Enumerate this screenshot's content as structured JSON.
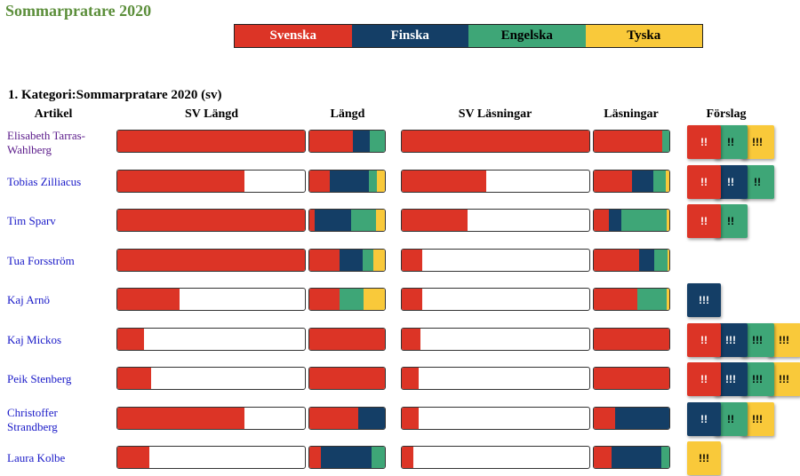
{
  "page": {
    "title": "Sommarpratare 2020"
  },
  "colors": {
    "sv": "#dc3426",
    "fi": "#143e66",
    "en": "#3ea677",
    "de": "#f9c93a"
  },
  "legend": [
    {
      "key": "sv",
      "label": "Svenska"
    },
    {
      "key": "fi",
      "label": "Finska"
    },
    {
      "key": "en",
      "label": "Engelska"
    },
    {
      "key": "de",
      "label": "Tyska"
    }
  ],
  "category": {
    "heading": "1. Kategori:Sommarpratare 2020 (sv)"
  },
  "columns": {
    "article": "Artikel",
    "sv_length": "SV Längd",
    "length": "Längd",
    "sv_reads": "SV Läsningar",
    "reads": "Läsningar",
    "suggestions": "Förslag"
  },
  "rows": [
    {
      "name": "Elisabeth Tarras-Wahlberg",
      "visited": true,
      "sv_length": 1.0,
      "length": {
        "sv": 0.58,
        "fi": 0.22,
        "en": 0.2,
        "de": 0
      },
      "sv_reads": 1.0,
      "reads": {
        "sv": 0.91,
        "fi": 0,
        "en": 0.09,
        "de": 0
      },
      "suggestions": [
        {
          "lang": "sv",
          "text": "!!"
        },
        {
          "lang": "en",
          "text": "!!"
        },
        {
          "lang": "de",
          "text": "!!!"
        }
      ]
    },
    {
      "name": "Tobias Zilliacus",
      "visited": false,
      "sv_length": 0.68,
      "length": {
        "sv": 0.27,
        "fi": 0.52,
        "en": 0.11,
        "de": 0.1
      },
      "sv_reads": 0.45,
      "reads": {
        "sv": 0.51,
        "fi": 0.28,
        "en": 0.16,
        "de": 0.05
      },
      "suggestions": [
        {
          "lang": "sv",
          "text": "!!"
        },
        {
          "lang": "fi",
          "text": "!!"
        },
        {
          "lang": "en",
          "text": "!!"
        }
      ]
    },
    {
      "name": "Tim Sparv",
      "visited": false,
      "sv_length": 1.0,
      "length": {
        "sv": 0.07,
        "fi": 0.48,
        "en": 0.33,
        "de": 0.12
      },
      "sv_reads": 0.35,
      "reads": {
        "sv": 0.2,
        "fi": 0.16,
        "en": 0.61,
        "de": 0.03
      },
      "suggestions": [
        {
          "lang": "sv",
          "text": "!!"
        },
        {
          "lang": "en",
          "text": "!!"
        }
      ]
    },
    {
      "name": "Tua Forsström",
      "visited": false,
      "sv_length": 1.0,
      "length": {
        "sv": 0.4,
        "fi": 0.3,
        "en": 0.15,
        "de": 0.15
      },
      "sv_reads": 0.11,
      "reads": {
        "sv": 0.6,
        "fi": 0.2,
        "en": 0.18,
        "de": 0.02
      },
      "suggestions": []
    },
    {
      "name": "Kaj Arnö",
      "visited": false,
      "sv_length": 0.33,
      "length": {
        "sv": 0.4,
        "fi": 0,
        "en": 0.32,
        "de": 0.28
      },
      "sv_reads": 0.11,
      "reads": {
        "sv": 0.58,
        "fi": 0,
        "en": 0.38,
        "de": 0.04
      },
      "suggestions": [
        {
          "lang": "fi",
          "text": "!!!"
        }
      ]
    },
    {
      "name": "Kaj Mickos",
      "visited": false,
      "sv_length": 0.14,
      "length": {
        "sv": 1.0,
        "fi": 0,
        "en": 0,
        "de": 0
      },
      "sv_reads": 0.1,
      "reads": {
        "sv": 1.0,
        "fi": 0,
        "en": 0,
        "de": 0
      },
      "suggestions": [
        {
          "lang": "sv",
          "text": "!!"
        },
        {
          "lang": "fi",
          "text": "!!!"
        },
        {
          "lang": "en",
          "text": "!!!"
        },
        {
          "lang": "de",
          "text": "!!!"
        }
      ]
    },
    {
      "name": "Peik Stenberg",
      "visited": false,
      "sv_length": 0.18,
      "length": {
        "sv": 1.0,
        "fi": 0,
        "en": 0,
        "de": 0
      },
      "sv_reads": 0.09,
      "reads": {
        "sv": 1.0,
        "fi": 0,
        "en": 0,
        "de": 0
      },
      "suggestions": [
        {
          "lang": "sv",
          "text": "!!"
        },
        {
          "lang": "fi",
          "text": "!!!"
        },
        {
          "lang": "en",
          "text": "!!!"
        },
        {
          "lang": "de",
          "text": "!!!"
        }
      ]
    },
    {
      "name": "Christoffer Strandberg",
      "visited": false,
      "sv_length": 0.68,
      "length": {
        "sv": 0.65,
        "fi": 0.35,
        "en": 0,
        "de": 0
      },
      "sv_reads": 0.09,
      "reads": {
        "sv": 0.28,
        "fi": 0.72,
        "en": 0,
        "de": 0
      },
      "suggestions": [
        {
          "lang": "fi",
          "text": "!!"
        },
        {
          "lang": "en",
          "text": "!!"
        },
        {
          "lang": "de",
          "text": "!!!"
        }
      ]
    },
    {
      "name": "Laura Kolbe",
      "visited": false,
      "sv_length": 0.17,
      "length": {
        "sv": 0.15,
        "fi": 0.67,
        "en": 0.18,
        "de": 0
      },
      "sv_reads": 0.06,
      "reads": {
        "sv": 0.23,
        "fi": 0.67,
        "en": 0.1,
        "de": 0
      },
      "suggestions": [
        {
          "lang": "de",
          "text": "!!!"
        }
      ]
    }
  ]
}
